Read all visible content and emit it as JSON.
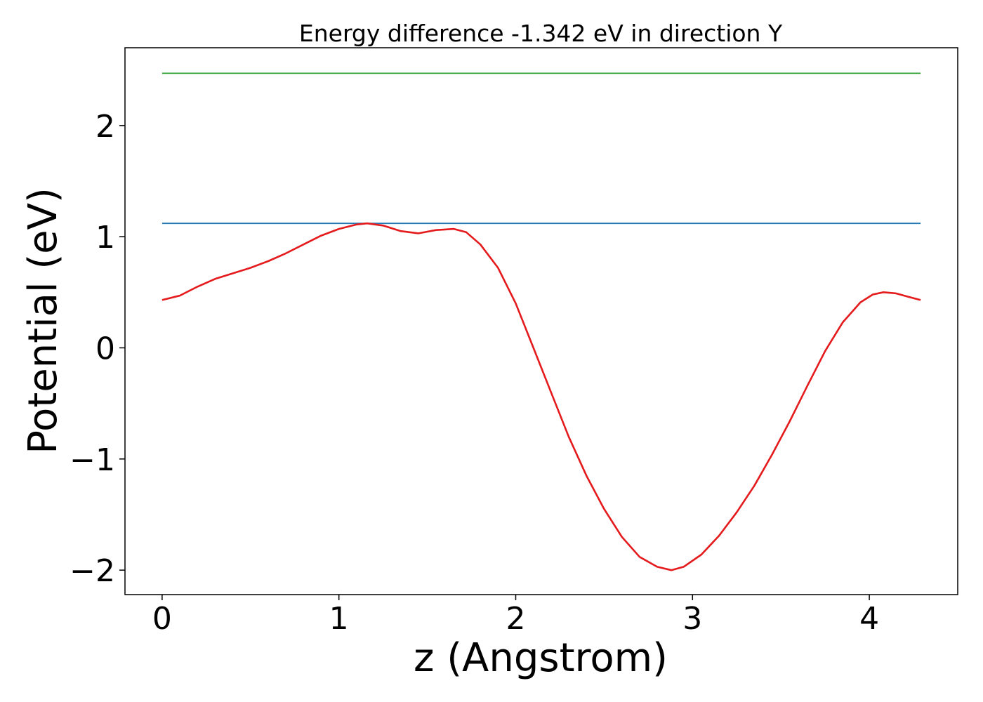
{
  "chart_data": {
    "type": "line",
    "title": "Energy difference -1.342 eV in direction Y",
    "xlabel": "z (Angstrom)",
    "ylabel": "Potential (eV)",
    "xlim": [
      -0.21,
      4.5
    ],
    "ylim": [
      -2.22,
      2.7
    ],
    "xticks": [
      0,
      1,
      2,
      3,
      4
    ],
    "xtick_labels": [
      "0",
      "1",
      "2",
      "3",
      "4"
    ],
    "yticks": [
      -2,
      -1,
      0,
      1,
      2
    ],
    "ytick_labels": [
      "−2",
      "−1",
      "0",
      "1",
      "2"
    ],
    "grid": false,
    "series": [
      {
        "color": "#2ca02c",
        "x": [
          0,
          4.29
        ],
        "y": [
          2.47,
          2.47
        ]
      },
      {
        "color": "#1f77b4",
        "x": [
          0,
          4.29
        ],
        "y": [
          1.12,
          1.12
        ]
      },
      {
        "color": "#e41a1c",
        "x": [
          0,
          0.1,
          0.2,
          0.3,
          0.4,
          0.5,
          0.6,
          0.7,
          0.8,
          0.9,
          1.0,
          1.1,
          1.16,
          1.25,
          1.35,
          1.45,
          1.55,
          1.65,
          1.72,
          1.8,
          1.9,
          2.0,
          2.1,
          2.2,
          2.3,
          2.4,
          2.5,
          2.6,
          2.7,
          2.8,
          2.88,
          2.95,
          3.05,
          3.15,
          3.25,
          3.35,
          3.45,
          3.55,
          3.65,
          3.75,
          3.85,
          3.95,
          4.02,
          4.08,
          4.15,
          4.22,
          4.29
        ],
        "y": [
          0.43,
          0.47,
          0.55,
          0.62,
          0.67,
          0.72,
          0.78,
          0.85,
          0.93,
          1.01,
          1.07,
          1.11,
          1.12,
          1.1,
          1.05,
          1.03,
          1.06,
          1.07,
          1.04,
          0.93,
          0.72,
          0.4,
          0.0,
          -0.4,
          -0.8,
          -1.15,
          -1.45,
          -1.7,
          -1.88,
          -1.97,
          -2.0,
          -1.97,
          -1.86,
          -1.69,
          -1.48,
          -1.24,
          -0.96,
          -0.66,
          -0.34,
          -0.03,
          0.23,
          0.41,
          0.48,
          0.5,
          0.49,
          0.46,
          0.43
        ]
      }
    ]
  }
}
